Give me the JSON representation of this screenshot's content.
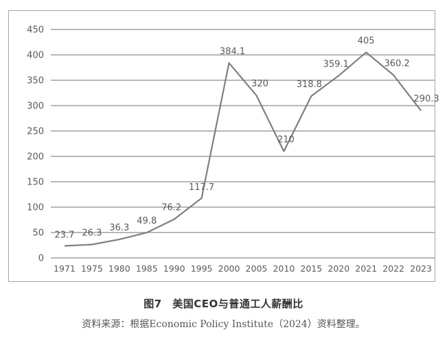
{
  "chart_data": {
    "type": "line",
    "title": "图7　美国CEO与普通工人薪酬比",
    "source": "资料来源：根据Economic Policy Institute（2024）资料整理。",
    "xlabel": "",
    "ylabel": "",
    "ylim": [
      0,
      450
    ],
    "yticks": [
      0,
      50,
      100,
      150,
      200,
      250,
      300,
      350,
      400,
      450
    ],
    "grid": true,
    "legend": "none",
    "categories": [
      "1971",
      "1975",
      "1980",
      "1985",
      "1990",
      "1995",
      "2000",
      "2005",
      "2010",
      "2015",
      "2020",
      "2021",
      "2022",
      "2023"
    ],
    "series": [
      {
        "name": "CEO与普通工人薪酬比",
        "values": [
          23.7,
          26.3,
          36.3,
          49.8,
          76.2,
          117.7,
          384.1,
          320,
          210,
          318.8,
          359.1,
          405,
          360.2,
          290.3
        ],
        "data_labels": [
          "23.7",
          "26.3",
          "36.3",
          "49.8",
          "76.2",
          "117.7",
          "384.1",
          "320",
          "210",
          "318.8",
          "359.1",
          "405",
          "360.2",
          "290.3"
        ],
        "color": "#7f7f7f"
      }
    ]
  },
  "caption": {
    "title": "图7　美国CEO与普通工人薪酬比",
    "source": "资料来源：根据Economic Policy Institute（2024）资料整理。"
  },
  "colors": {
    "line": "#7f7f7f",
    "grid": "#8c8c8c",
    "frame": "#a6a6a6",
    "text": "#595959"
  }
}
